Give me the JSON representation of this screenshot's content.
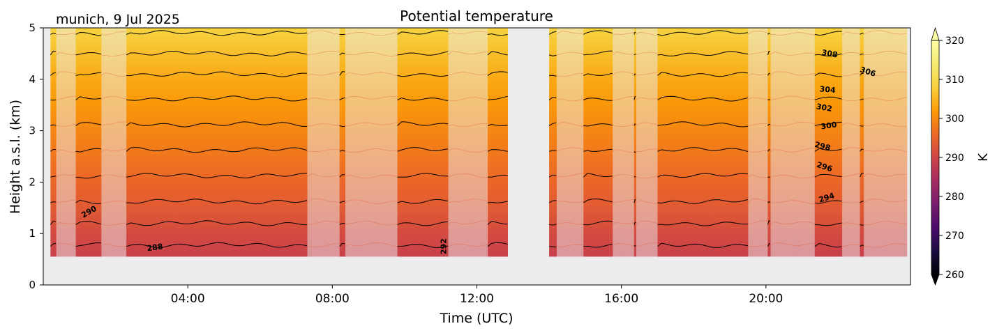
{
  "chart_data": {
    "type": "heatmap",
    "title": "Potential temperature",
    "subtitle": "munich, 9 Jul 2025",
    "xlabel": "Time (UTC)",
    "ylabel": "Height a.s.l. (km)",
    "xlim_hours": [
      0,
      24
    ],
    "ylim_km": [
      0,
      5
    ],
    "x_ticks": [
      {
        "hour": 4,
        "label": "04:00"
      },
      {
        "hour": 8,
        "label": "08:00"
      },
      {
        "hour": 12,
        "label": "12:00"
      },
      {
        "hour": 16,
        "label": "16:00"
      },
      {
        "hour": 20,
        "label": "20:00"
      }
    ],
    "y_ticks": [
      {
        "value": 0,
        "label": "0"
      },
      {
        "value": 1,
        "label": "1"
      },
      {
        "value": 2,
        "label": "2"
      },
      {
        "value": 3,
        "label": "3"
      },
      {
        "value": 4,
        "label": "4"
      },
      {
        "value": 5,
        "label": "5"
      }
    ],
    "data_bottom_km": 0.55,
    "missing_data_color": "#ececec",
    "colorbar": {
      "label": "K",
      "min": 260,
      "max": 320,
      "ticks": [
        {
          "value": 260,
          "label": "260"
        },
        {
          "value": 270,
          "label": "270"
        },
        {
          "value": 280,
          "label": "280"
        },
        {
          "value": 290,
          "label": "290"
        },
        {
          "value": 300,
          "label": "300"
        },
        {
          "value": 310,
          "label": "310"
        },
        {
          "value": 320,
          "label": "320"
        }
      ],
      "colormap": "inferno",
      "extend": "both"
    },
    "profile": {
      "description": "potential temperature vs height (typical profile)",
      "height_km": [
        0.55,
        1.0,
        1.5,
        2.0,
        2.5,
        3.0,
        3.5,
        4.0,
        4.5,
        5.0
      ],
      "theta_K": [
        289.0,
        291.0,
        293.5,
        295.5,
        297.5,
        299.5,
        301.5,
        303.5,
        306.0,
        308.5
      ]
    },
    "contour_levels_K": [
      288,
      290,
      292,
      294,
      296,
      298,
      300,
      302,
      304,
      306,
      308,
      310,
      312
    ],
    "contour_labels": [
      {
        "value": "290",
        "hour": 1.3,
        "height_km": 1.38,
        "angle": -30
      },
      {
        "value": "288",
        "hour": 3.1,
        "height_km": 0.68,
        "angle": -8
      },
      {
        "value": "292",
        "hour": 11.15,
        "height_km": 0.75,
        "angle": -90
      },
      {
        "value": "294",
        "hour": 21.7,
        "height_km": 1.65,
        "angle": -18
      },
      {
        "value": "296",
        "hour": 21.6,
        "height_km": 2.25,
        "angle": 18
      },
      {
        "value": "298",
        "hour": 21.55,
        "height_km": 2.65,
        "angle": 14
      },
      {
        "value": "300",
        "hour": 21.75,
        "height_km": 3.05,
        "angle": -8
      },
      {
        "value": "302",
        "hour": 21.6,
        "height_km": 3.4,
        "angle": 10
      },
      {
        "value": "304",
        "hour": 21.7,
        "height_km": 3.75,
        "angle": 5
      },
      {
        "value": "306",
        "hour": 22.8,
        "height_km": 4.1,
        "angle": 18
      },
      {
        "value": "308",
        "hour": 21.75,
        "height_km": 4.45,
        "angle": 10
      }
    ],
    "solid_blocks_hours": [
      [
        0.2,
        0.35
      ],
      [
        0.9,
        1.6
      ],
      [
        2.3,
        7.3
      ],
      [
        8.2,
        8.35
      ],
      [
        9.8,
        11.2
      ],
      [
        12.3,
        12.85
      ],
      [
        14.0,
        14.2
      ],
      [
        14.95,
        15.75
      ],
      [
        16.35,
        16.4
      ],
      [
        17.0,
        19.5
      ],
      [
        20.05,
        20.12
      ],
      [
        21.35,
        22.1
      ],
      [
        22.6,
        22.7
      ]
    ],
    "faded_blocks_hours": [
      [
        0.35,
        0.9
      ],
      [
        1.6,
        2.3
      ],
      [
        7.3,
        8.2
      ],
      [
        8.35,
        9.8
      ],
      [
        11.2,
        12.3
      ],
      [
        14.2,
        14.95
      ],
      [
        15.75,
        16.35
      ],
      [
        16.4,
        17.0
      ],
      [
        19.5,
        20.05
      ],
      [
        20.12,
        21.35
      ],
      [
        22.1,
        22.6
      ],
      [
        22.7,
        23.9
      ]
    ],
    "missing_hours": [
      [
        12.85,
        14.0
      ]
    ]
  }
}
